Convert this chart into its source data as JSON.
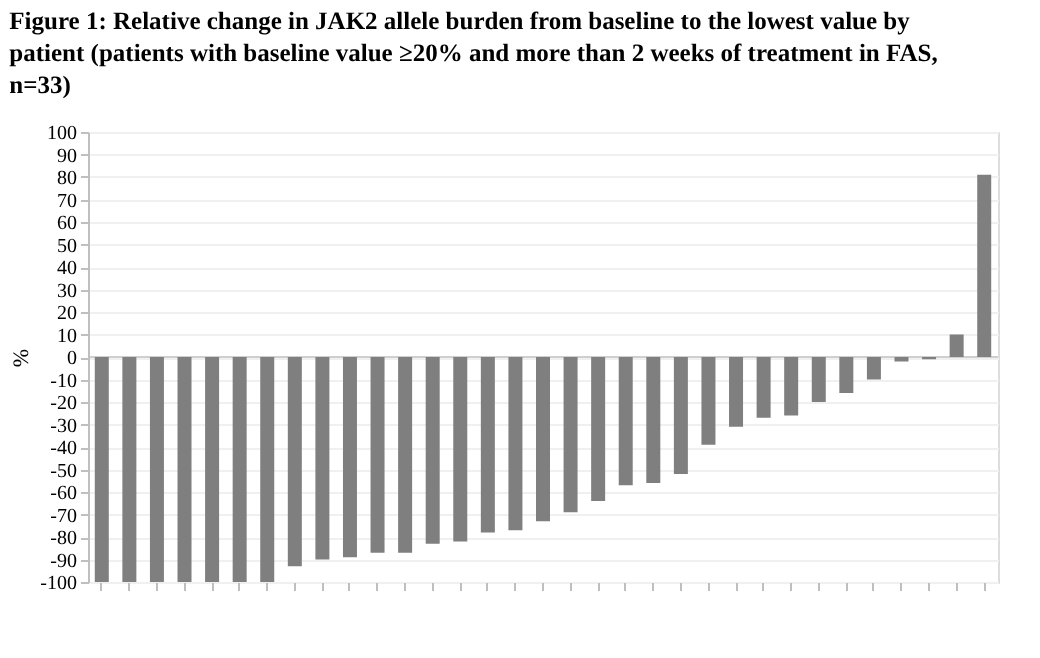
{
  "chart_data": {
    "type": "bar",
    "title": "Figure 1: Relative change in JAK2 allele burden from baseline to the lowest value by patient (patients with baseline value ≥20% and more than 2 weeks of treatment in FAS, n=33)",
    "ylabel": "%",
    "categories": [
      null,
      null,
      null,
      null,
      null,
      null,
      null,
      null,
      null,
      null,
      null,
      null,
      null,
      null,
      null,
      null,
      null,
      null,
      null,
      null,
      null,
      null,
      null,
      null,
      null,
      null,
      null,
      null,
      null,
      null,
      null,
      null,
      null
    ],
    "values": [
      -100,
      -100,
      -100,
      -100,
      -100,
      -100,
      -100,
      -93,
      -90,
      -89,
      -87,
      -87,
      -83,
      -82,
      -78,
      -77,
      -73,
      -69,
      -64,
      -57,
      -56,
      -52,
      -39,
      -31,
      -27,
      -26,
      -20,
      -16,
      -10,
      -2,
      -1,
      10,
      81
    ],
    "color": "#7f7f7f",
    "ylim": [
      -100,
      100
    ],
    "yticks": [
      -100,
      -90,
      -80,
      -70,
      -60,
      -50,
      -40,
      -30,
      -20,
      -10,
      0,
      10,
      20,
      30,
      40,
      50,
      60,
      70,
      80,
      90,
      100
    ],
    "grid": "y"
  }
}
